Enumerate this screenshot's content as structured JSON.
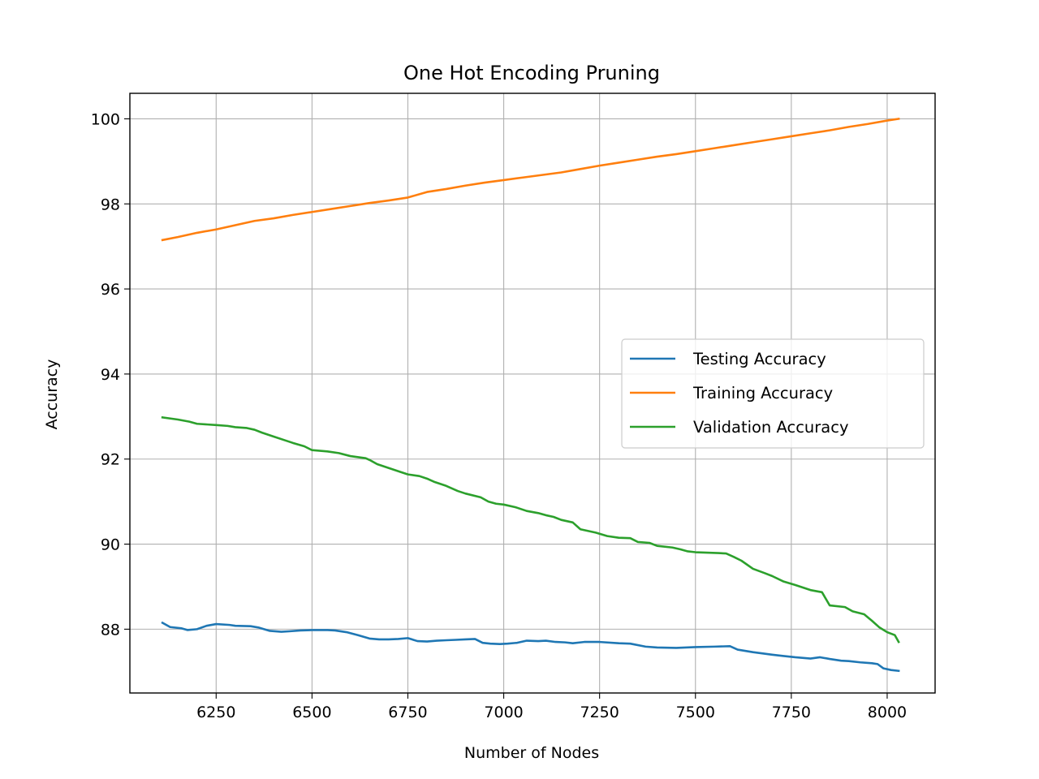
{
  "chart_data": {
    "type": "line",
    "title": "One Hot Encoding Pruning",
    "xlabel": "Number of Nodes",
    "ylabel": "Accuracy",
    "xlim": [
      6025,
      8125
    ],
    "ylim": [
      86.5,
      100.6
    ],
    "xticks": [
      6250,
      6500,
      6750,
      7000,
      7250,
      7500,
      7750,
      8000
    ],
    "yticks": [
      88,
      90,
      92,
      94,
      96,
      98,
      100
    ],
    "grid": true,
    "legend_position": "center-right",
    "series": [
      {
        "name": "Testing Accuracy",
        "color": "#1f77b4",
        "x": [
          6110,
          6130,
          6160,
          6175,
          6200,
          6225,
          6250,
          6285,
          6300,
          6340,
          6360,
          6390,
          6420,
          6440,
          6470,
          6500,
          6540,
          6560,
          6590,
          6620,
          6650,
          6675,
          6700,
          6725,
          6750,
          6775,
          6800,
          6825,
          6850,
          6875,
          6900,
          6925,
          6945,
          6965,
          6990,
          7010,
          7035,
          7060,
          7090,
          7110,
          7135,
          7160,
          7180,
          7210,
          7250,
          7300,
          7330,
          7370,
          7400,
          7450,
          7500,
          7550,
          7590,
          7610,
          7650,
          7700,
          7730,
          7760,
          7800,
          7825,
          7850,
          7880,
          7900,
          7930,
          7960,
          7975,
          7990,
          8010,
          8030
        ],
        "y": [
          88.15,
          88.05,
          88.02,
          87.98,
          88.0,
          88.08,
          88.12,
          88.1,
          88.08,
          88.07,
          88.04,
          87.96,
          87.94,
          87.95,
          87.97,
          87.98,
          87.98,
          87.97,
          87.93,
          87.86,
          87.78,
          87.76,
          87.76,
          87.77,
          87.79,
          87.72,
          87.71,
          87.73,
          87.74,
          87.75,
          87.76,
          87.77,
          87.68,
          87.66,
          87.65,
          87.66,
          87.68,
          87.73,
          87.72,
          87.73,
          87.7,
          87.69,
          87.67,
          87.7,
          87.7,
          87.67,
          87.66,
          87.59,
          87.57,
          87.56,
          87.58,
          87.59,
          87.6,
          87.52,
          87.46,
          87.4,
          87.37,
          87.34,
          87.31,
          87.34,
          87.3,
          87.26,
          87.25,
          87.22,
          87.2,
          87.18,
          87.08,
          87.04,
          87.02
        ]
      },
      {
        "name": "Training Accuracy",
        "color": "#ff7f0e",
        "x": [
          6110,
          6150,
          6200,
          6250,
          6300,
          6350,
          6400,
          6450,
          6500,
          6550,
          6600,
          6650,
          6700,
          6750,
          6800,
          6850,
          6900,
          6950,
          7000,
          7050,
          7100,
          7150,
          7200,
          7250,
          7300,
          7350,
          7400,
          7450,
          7500,
          7550,
          7600,
          7650,
          7700,
          7750,
          7800,
          7850,
          7900,
          7950,
          8000,
          8030
        ],
        "y": [
          97.15,
          97.22,
          97.32,
          97.4,
          97.5,
          97.6,
          97.66,
          97.74,
          97.81,
          97.88,
          97.95,
          98.02,
          98.08,
          98.15,
          98.28,
          98.35,
          98.43,
          98.5,
          98.56,
          98.62,
          98.68,
          98.74,
          98.82,
          98.9,
          98.97,
          99.04,
          99.11,
          99.17,
          99.24,
          99.31,
          99.38,
          99.45,
          99.52,
          99.59,
          99.66,
          99.73,
          99.81,
          99.88,
          99.96,
          100.0
        ]
      },
      {
        "name": "Validation Accuracy",
        "color": "#2ca02c",
        "x": [
          6110,
          6150,
          6180,
          6200,
          6250,
          6280,
          6300,
          6330,
          6350,
          6370,
          6400,
          6430,
          6450,
          6480,
          6500,
          6540,
          6570,
          6600,
          6640,
          6650,
          6670,
          6700,
          6730,
          6750,
          6780,
          6800,
          6820,
          6850,
          6880,
          6900,
          6940,
          6960,
          6980,
          7000,
          7030,
          7060,
          7090,
          7110,
          7130,
          7150,
          7180,
          7200,
          7240,
          7270,
          7300,
          7330,
          7350,
          7380,
          7400,
          7440,
          7460,
          7480,
          7500,
          7530,
          7560,
          7580,
          7600,
          7620,
          7650,
          7680,
          7700,
          7730,
          7760,
          7800,
          7830,
          7850,
          7890,
          7910,
          7940,
          7960,
          7980,
          8000,
          8020,
          8030
        ],
        "y": [
          92.98,
          92.93,
          92.88,
          92.83,
          92.8,
          92.78,
          92.75,
          92.73,
          92.69,
          92.62,
          92.53,
          92.44,
          92.38,
          92.3,
          92.21,
          92.18,
          92.14,
          92.07,
          92.02,
          91.98,
          91.88,
          91.79,
          91.7,
          91.64,
          91.6,
          91.54,
          91.46,
          91.37,
          91.25,
          91.19,
          91.1,
          91.0,
          90.95,
          90.93,
          90.87,
          90.78,
          90.73,
          90.68,
          90.64,
          90.57,
          90.51,
          90.35,
          90.27,
          90.19,
          90.15,
          90.14,
          90.05,
          90.03,
          89.96,
          89.92,
          89.88,
          89.83,
          89.81,
          89.8,
          89.79,
          89.78,
          89.7,
          89.61,
          89.42,
          89.32,
          89.25,
          89.12,
          89.04,
          88.92,
          88.87,
          88.56,
          88.52,
          88.42,
          88.35,
          88.2,
          88.04,
          87.93,
          87.86,
          87.7
        ]
      }
    ]
  }
}
